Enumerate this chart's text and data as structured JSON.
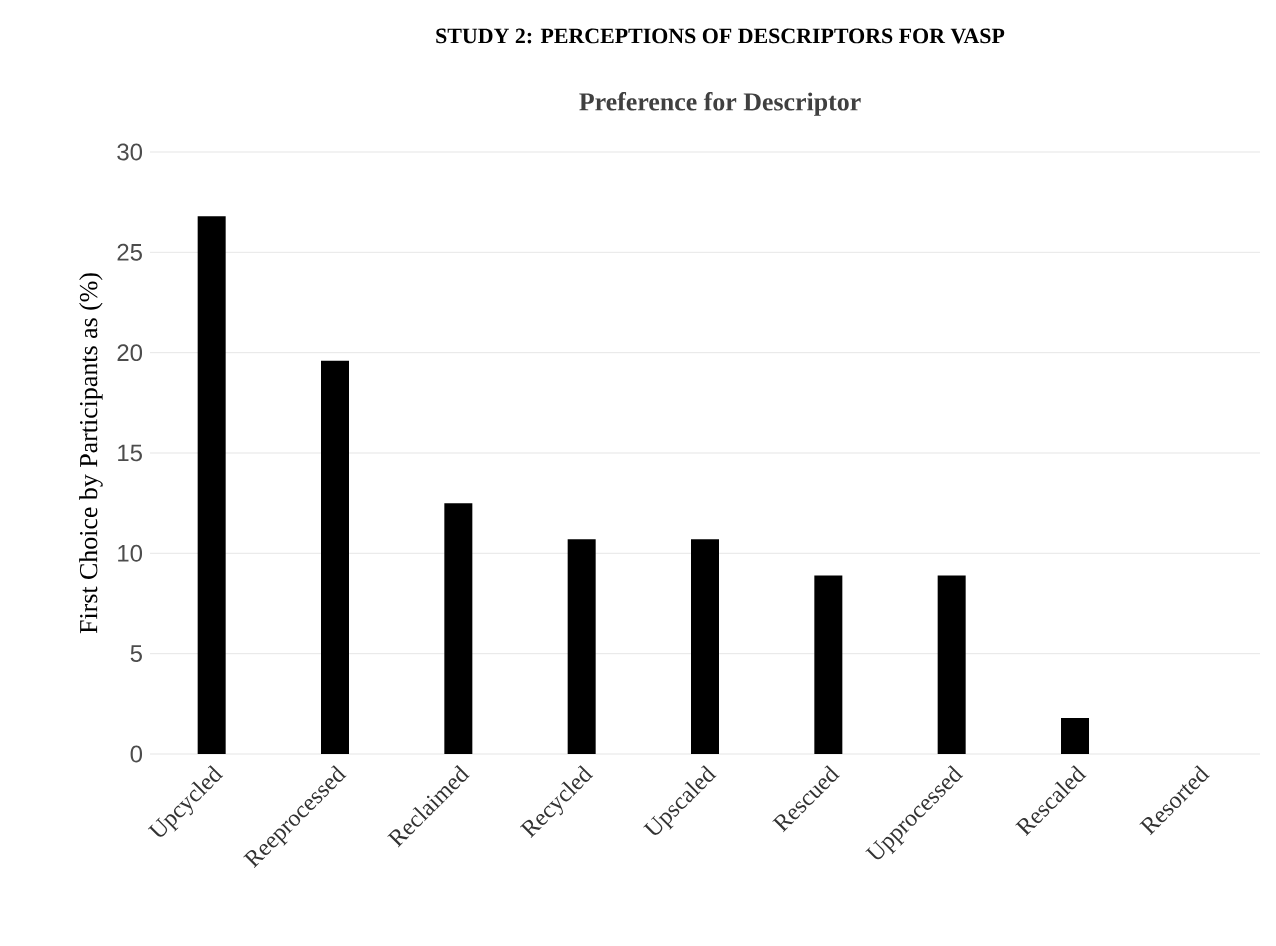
{
  "chart_data": {
    "type": "bar",
    "title": "STUDY 2: PERCEPTIONS OF DESCRIPTORS FOR VASP",
    "subtitle": "Preference for Descriptor",
    "ylabel": "First Choice by Participants as (%)",
    "categories": [
      "Upcycled",
      "Reeprocessed",
      "Reclaimed",
      "Recycled",
      "Upscaled",
      "Rescued",
      "Upprocessed",
      "Rescaled",
      "Resorted"
    ],
    "values": [
      26.8,
      19.6,
      12.5,
      10.7,
      10.7,
      8.9,
      8.9,
      1.8,
      0
    ],
    "color": "#000000",
    "ylim": [
      0,
      30
    ],
    "yticks": [
      0,
      5,
      10,
      15,
      20,
      25,
      30
    ],
    "grid": "y"
  }
}
